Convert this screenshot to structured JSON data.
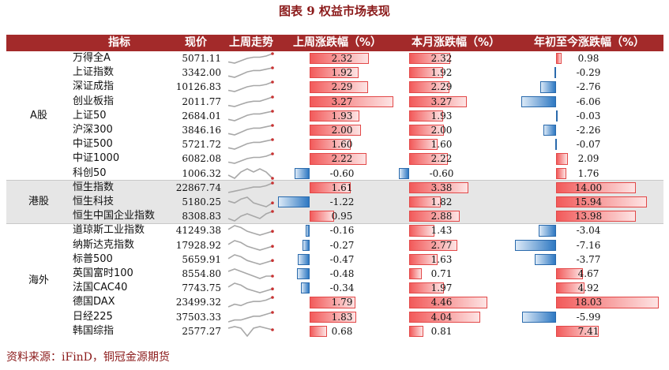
{
  "title": "图表 9  权益市场表现",
  "source": "资料来源：iFinD，铜冠金源期货",
  "colors": {
    "header_bg": "#a32a2a",
    "title": "#8b1a1a",
    "pos_bar": "#f25a5a",
    "neg_bar": "#2e78c2",
    "band": "#e6e6e6",
    "spark": "#a8a8a8",
    "spark_end": "#c83232"
  },
  "headers": [
    "指标",
    "现价",
    "上周走势",
    "上周涨跌幅（%）",
    "本月涨跌幅（%）",
    "年初至今涨跌幅（%）"
  ],
  "groups": [
    {
      "name": "A股",
      "rows": [
        {
          "name": "万得全A",
          "price": "5071.11",
          "week": "2.32",
          "month": "2.32",
          "ytd": "0.98",
          "week_v": 2.32,
          "month_v": 2.32,
          "ytd_v": 0.98,
          "spark": [
            2,
            1,
            3,
            5,
            6,
            6,
            7,
            9
          ]
        },
        {
          "name": "上证指数",
          "price": "3342.00",
          "week": "1.92",
          "month": "1.92",
          "ytd": "-0.29",
          "week_v": 1.92,
          "month_v": 1.92,
          "ytd_v": -0.29,
          "spark": [
            2,
            1,
            3,
            5,
            6,
            6,
            7,
            8
          ]
        },
        {
          "name": "深证成指",
          "price": "10126.83",
          "week": "2.29",
          "month": "2.29",
          "ytd": "-2.76",
          "week_v": 2.29,
          "month_v": 2.29,
          "ytd_v": -2.76,
          "spark": [
            2,
            1,
            3,
            5,
            6,
            6,
            7,
            9
          ]
        },
        {
          "name": "创业板指",
          "price": "2011.77",
          "week": "3.27",
          "month": "3.27",
          "ytd": "-6.06",
          "week_v": 3.27,
          "month_v": 3.27,
          "ytd_v": -6.06,
          "spark": [
            2,
            1,
            3,
            5,
            6,
            6,
            8,
            10
          ]
        },
        {
          "name": "上证50",
          "price": "2684.01",
          "week": "1.93",
          "month": "1.93",
          "ytd": "-0.03",
          "week_v": 1.93,
          "month_v": 1.93,
          "ytd_v": -0.03,
          "spark": [
            2,
            1,
            3,
            5,
            6,
            6,
            7,
            8
          ]
        },
        {
          "name": "沪深300",
          "price": "3846.16",
          "week": "2.00",
          "month": "2.00",
          "ytd": "-2.26",
          "week_v": 2.0,
          "month_v": 2.0,
          "ytd_v": -2.26,
          "spark": [
            2,
            1,
            3,
            5,
            6,
            6,
            7,
            8
          ]
        },
        {
          "name": "中证500",
          "price": "5721.72",
          "week": "1.60",
          "month": "1.60",
          "ytd": "-0.07",
          "week_v": 1.6,
          "month_v": 1.6,
          "ytd_v": -0.07,
          "spark": [
            2,
            1,
            3,
            5,
            6,
            6,
            7,
            8
          ]
        },
        {
          "name": "中证1000",
          "price": "6082.08",
          "week": "2.22",
          "month": "2.22",
          "ytd": "2.09",
          "week_v": 2.22,
          "month_v": 2.22,
          "ytd_v": 2.09,
          "spark": [
            2,
            1,
            3,
            5,
            6,
            6,
            7,
            9
          ]
        },
        {
          "name": "科创50",
          "price": "1006.32",
          "week": "-0.60",
          "month": "-0.60",
          "ytd": "1.76",
          "week_v": -0.6,
          "month_v": -0.6,
          "ytd_v": 1.76,
          "spark": [
            5,
            4,
            6,
            7,
            6,
            7,
            6,
            4
          ]
        }
      ]
    },
    {
      "name": "港股",
      "rows": [
        {
          "name": "恒生指数",
          "price": "22867.74",
          "week": "1.61",
          "month": "3.38",
          "ytd": "14.00",
          "week_v": 1.61,
          "month_v": 3.38,
          "ytd_v": 14.0,
          "spark": [
            2,
            3,
            4,
            5,
            6,
            6,
            7,
            9
          ]
        },
        {
          "name": "恒生科技",
          "price": "5180.25",
          "week": "-1.22",
          "month": "1.82",
          "ytd": "15.94",
          "week_v": -1.22,
          "month_v": 1.82,
          "ytd_v": 15.94,
          "spark": [
            6,
            5,
            7,
            8,
            5,
            4,
            3,
            5
          ]
        },
        {
          "name": "恒生中国企业指数",
          "price": "8308.83",
          "week": "0.95",
          "month": "2.88",
          "ytd": "13.98",
          "week_v": 0.95,
          "month_v": 2.88,
          "ytd_v": 13.98,
          "spark": [
            5,
            4,
            6,
            7,
            6,
            5,
            7,
            8
          ]
        }
      ]
    },
    {
      "name": "海外",
      "rows": [
        {
          "name": "道琼斯工业指数",
          "price": "41249.38",
          "week": "-0.16",
          "month": "1.43",
          "ytd": "-3.04",
          "week_v": -0.16,
          "month_v": 1.43,
          "ytd_v": -3.04,
          "spark": [
            6,
            8,
            7,
            5,
            4,
            3,
            4,
            5
          ]
        },
        {
          "name": "纳斯达克指数",
          "price": "17928.92",
          "week": "-0.27",
          "month": "2.77",
          "ytd": "-7.16",
          "week_v": -0.27,
          "month_v": 2.77,
          "ytd_v": -7.16,
          "spark": [
            6,
            8,
            7,
            5,
            4,
            3,
            4,
            5
          ]
        },
        {
          "name": "标普500",
          "price": "5659.91",
          "week": "-0.47",
          "month": "1.63",
          "ytd": "-3.77",
          "week_v": -0.47,
          "month_v": 1.63,
          "ytd_v": -3.77,
          "spark": [
            6,
            8,
            7,
            5,
            4,
            3,
            4,
            5
          ]
        },
        {
          "name": "英国富时100",
          "price": "8554.80",
          "week": "-0.48",
          "month": "0.71",
          "ytd": "4.67",
          "week_v": -0.48,
          "month_v": 0.71,
          "ytd_v": 4.67,
          "spark": [
            7,
            8,
            7,
            6,
            5,
            4,
            5,
            5
          ]
        },
        {
          "name": "法国CAC40",
          "price": "7743.75",
          "week": "-0.34",
          "month": "1.97",
          "ytd": "4.92",
          "week_v": -0.34,
          "month_v": 1.97,
          "ytd_v": 4.92,
          "spark": [
            6,
            8,
            7,
            5,
            4,
            3,
            4,
            5
          ]
        },
        {
          "name": "德国DAX",
          "price": "23499.32",
          "week": "1.79",
          "month": "4.46",
          "ytd": "18.03",
          "week_v": 1.79,
          "month_v": 4.46,
          "ytd_v": 18.03,
          "spark": [
            2,
            4,
            3,
            5,
            6,
            6,
            7,
            9
          ]
        },
        {
          "name": "日经225",
          "price": "37503.33",
          "week": "1.83",
          "month": "4.04",
          "ytd": "-5.99",
          "week_v": 1.83,
          "month_v": 4.04,
          "ytd_v": -5.99,
          "spark": [
            3,
            4,
            4,
            5,
            6,
            6,
            7,
            8
          ]
        },
        {
          "name": "韩国综指",
          "price": "2577.27",
          "week": "0.68",
          "month": "0.81",
          "ytd": "7.41",
          "week_v": 0.68,
          "month_v": 0.81,
          "ytd_v": 7.41,
          "spark": [
            6,
            7,
            6,
            1,
            6,
            7,
            6,
            5
          ]
        }
      ]
    }
  ]
}
